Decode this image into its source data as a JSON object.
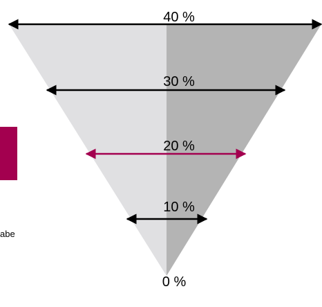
{
  "diagram": {
    "levels": [
      {
        "label": "40 %",
        "accent": false
      },
      {
        "label": "30 %",
        "accent": false
      },
      {
        "label": "20 %",
        "accent": true
      },
      {
        "label": "10 %",
        "accent": false
      }
    ],
    "apex_label": "0 %",
    "side_text": "abe"
  },
  "colors": {
    "left_half": "#e0e0e2",
    "right_half": "#b4b4b4",
    "arrow": "#000000",
    "accent": "#a3004f"
  }
}
